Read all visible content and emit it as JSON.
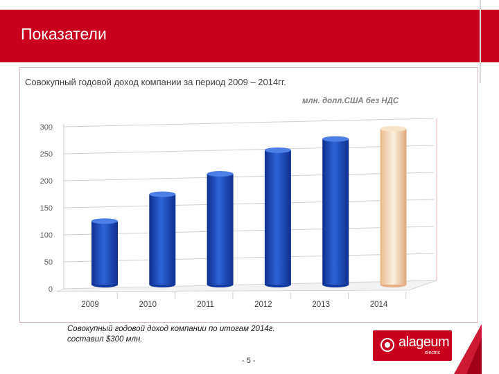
{
  "header": {
    "title": "Показатели"
  },
  "chart_data": {
    "type": "bar",
    "title": "Совокупный годовой доход компании за период 2009 – 2014гг.",
    "units": "млн. долл.США без НДС",
    "categories": [
      "2009",
      "2010",
      "2011",
      "2012",
      "2013",
      "2014"
    ],
    "values": [
      133,
      182,
      219,
      262,
      282,
      300
    ],
    "yticks": [
      "0",
      "50",
      "100",
      "150",
      "200",
      "250",
      "300"
    ],
    "ylim": [
      0,
      300
    ],
    "grid": true,
    "bar_color": "#1f4fbf",
    "highlight_color": "#f2d7b8"
  },
  "note": {
    "line1": "Совокупный годовой доход компании по итогам 2014г.",
    "line2": "составил $300 млн."
  },
  "page_number": "- 5 -",
  "logo": {
    "name": "alageum",
    "sub": "electric"
  },
  "colors": {
    "brand": "#c8001e"
  }
}
